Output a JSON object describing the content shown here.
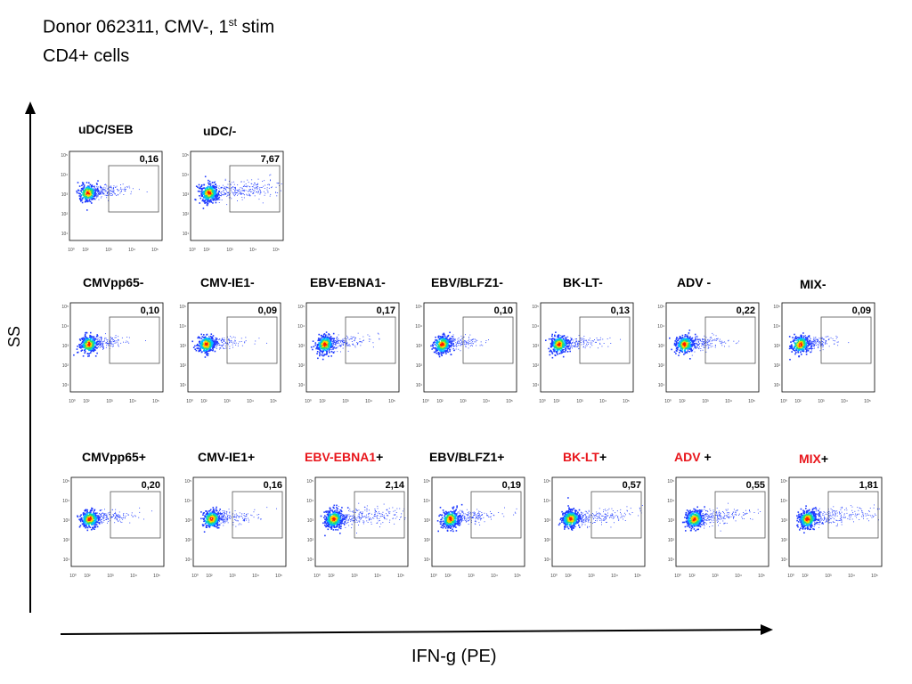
{
  "header": {
    "line1_pre": "Donor 062311, CMV-, 1",
    "line1_sup": "st",
    "line1_post": " stim",
    "line2": "CD4+ cells"
  },
  "axes": {
    "x_label": "IFN-g (PE)",
    "y_label": "SS"
  },
  "tick_labels": [
    "10⁰",
    "10²",
    "10³",
    "10⁴",
    "10⁵"
  ],
  "y_tick_labels": [
    "10¹",
    "10²",
    "10³",
    "10⁴",
    "10⁵"
  ],
  "colors": {
    "red": "#e8151b",
    "gate": "#555555",
    "density_low": "#1f3bff",
    "density_high": "#ff1a00"
  },
  "chart_data": {
    "type": "scatter",
    "subtype": "flow-cytometry-density-plots",
    "x_axis": "IFN-g (PE), log scale",
    "y_axis": "SS, log scale",
    "panels": [
      {
        "row": 1,
        "label": "uDC/SEB",
        "gate_percent": "0,16",
        "spread": 0.25
      },
      {
        "row": 1,
        "label": "uDC/-",
        "gate_percent": "7,67",
        "spread": 1.0
      },
      {
        "row": 2,
        "label": "CMVpp65-",
        "gate_percent": "0,10",
        "spread": 0.2
      },
      {
        "row": 2,
        "label": "CMV-IE1-",
        "gate_percent": "0,09",
        "spread": 0.2
      },
      {
        "row": 2,
        "label": "EBV-EBNA1-",
        "gate_percent": "0,17",
        "spread": 0.3
      },
      {
        "row": 2,
        "label": "EBV/BLFZ1-",
        "gate_percent": "0,10",
        "spread": 0.25
      },
      {
        "row": 2,
        "label": "BK-LT-",
        "gate_percent": "0,13",
        "spread": 0.3
      },
      {
        "row": 2,
        "label": "ADV -",
        "gate_percent": "0,22",
        "spread": 0.35
      },
      {
        "row": 2,
        "label": "MIX-",
        "gate_percent": "0,09",
        "spread": 0.2
      },
      {
        "row": 3,
        "label": "CMVpp65+",
        "gate_percent": "0,20",
        "spread": 0.35
      },
      {
        "row": 3,
        "label": "CMV-IE1+",
        "gate_percent": "0,16",
        "spread": 0.3
      },
      {
        "row": 3,
        "label": "EBV-EBNA1+",
        "label_red": "EBV-EBNA1",
        "label_suffix": "+",
        "gate_percent": "2,14",
        "spread": 0.9
      },
      {
        "row": 3,
        "label": "EBV/BLFZ1+",
        "gate_percent": "0,19",
        "spread": 0.4
      },
      {
        "row": 3,
        "label": "BK-LT+",
        "label_red": "BK-LT",
        "label_suffix": "+",
        "gate_percent": "0,57",
        "spread": 0.6
      },
      {
        "row": 3,
        "label": "ADV +",
        "label_red": "ADV",
        "label_suffix": " +",
        "gate_percent": "0,55",
        "spread": 0.6
      },
      {
        "row": 3,
        "label": "MIX+",
        "label_red": "MIX",
        "label_suffix": "+",
        "gate_percent": "1,81",
        "spread": 0.8
      }
    ]
  }
}
